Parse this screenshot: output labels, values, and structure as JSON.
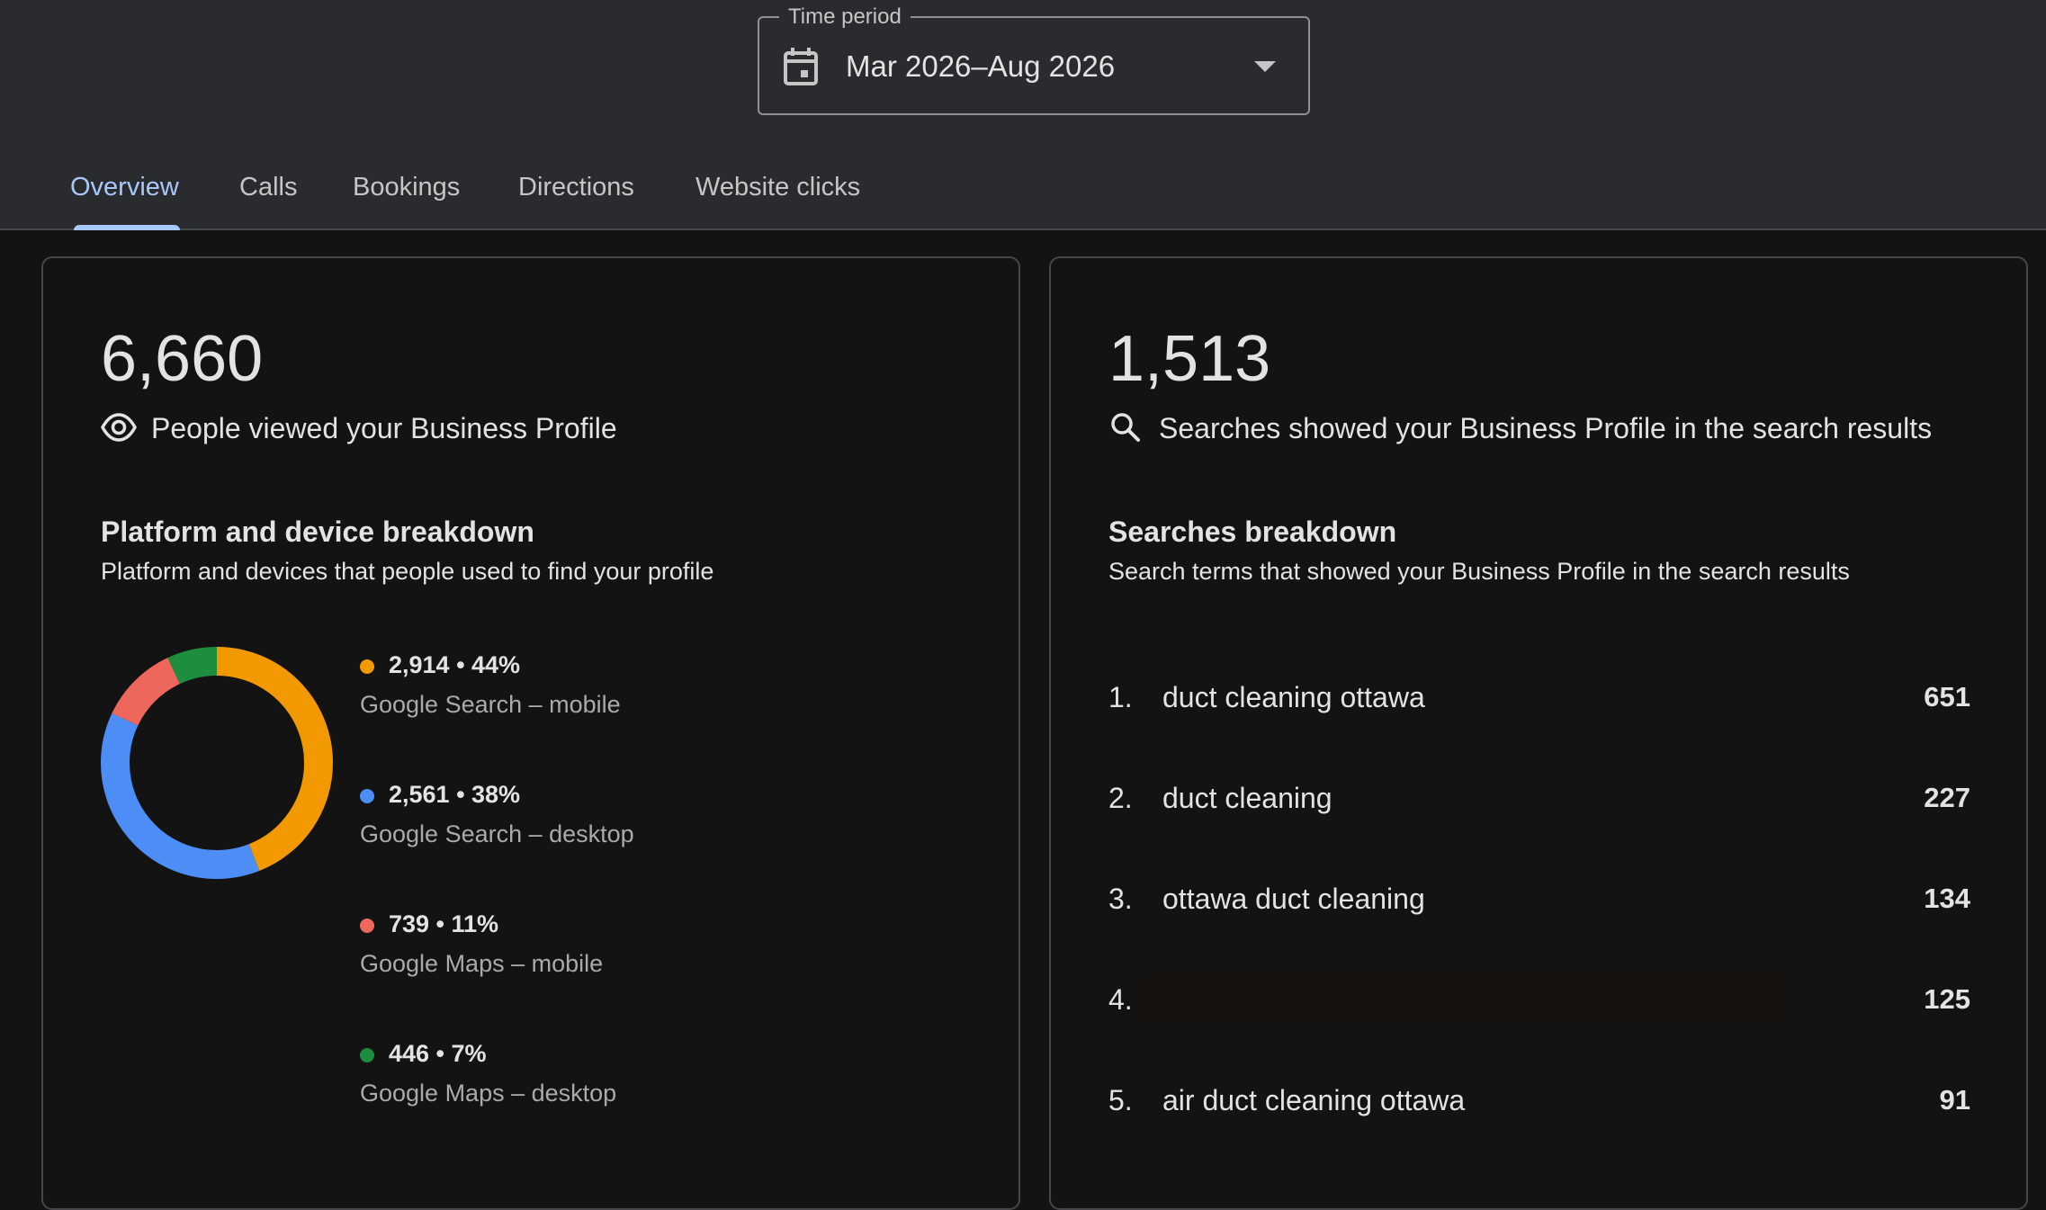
{
  "time_period": {
    "legend": "Time period",
    "value": "Mar 2026–Aug 2026",
    "icon": "calendar-icon"
  },
  "tabs": [
    {
      "label": "Overview",
      "active": true
    },
    {
      "label": "Calls",
      "active": false
    },
    {
      "label": "Bookings",
      "active": false
    },
    {
      "label": "Directions",
      "active": false
    },
    {
      "label": "Website clicks",
      "active": false
    }
  ],
  "profile_views": {
    "value": "6,660",
    "label": "People viewed your Business Profile",
    "icon": "eye-icon"
  },
  "platform_breakdown": {
    "title": "Platform and device breakdown",
    "subtitle": "Platform and devices that people used to find your profile",
    "items": [
      {
        "value": "2,914 • 44%",
        "label": "Google Search – mobile",
        "color": "#f29900",
        "share": 0.44
      },
      {
        "value": "2,561 • 38%",
        "label": "Google Search – desktop",
        "color": "#4c8df6",
        "share": 0.38
      },
      {
        "value": "739 • 11%",
        "label": "Google Maps – mobile",
        "color": "#ee675c",
        "share": 0.11
      },
      {
        "value": "446 • 7%",
        "label": "Google Maps – desktop",
        "color": "#1e8e3e",
        "share": 0.07
      }
    ]
  },
  "searches": {
    "value": "1,513",
    "label": "Searches showed your Business Profile in the search results",
    "icon": "search-icon"
  },
  "searches_breakdown": {
    "title": "Searches breakdown",
    "subtitle": "Search terms that showed your Business Profile in the search results",
    "terms": [
      {
        "rank": "1.",
        "term": "duct cleaning ottawa",
        "count": "651"
      },
      {
        "rank": "2.",
        "term": "duct cleaning",
        "count": "227"
      },
      {
        "rank": "3.",
        "term": "ottawa duct cleaning",
        "count": "134"
      },
      {
        "rank": "4.",
        "term": "",
        "count": "125"
      },
      {
        "rank": "5.",
        "term": "air duct cleaning ottawa",
        "count": "91"
      }
    ]
  }
}
